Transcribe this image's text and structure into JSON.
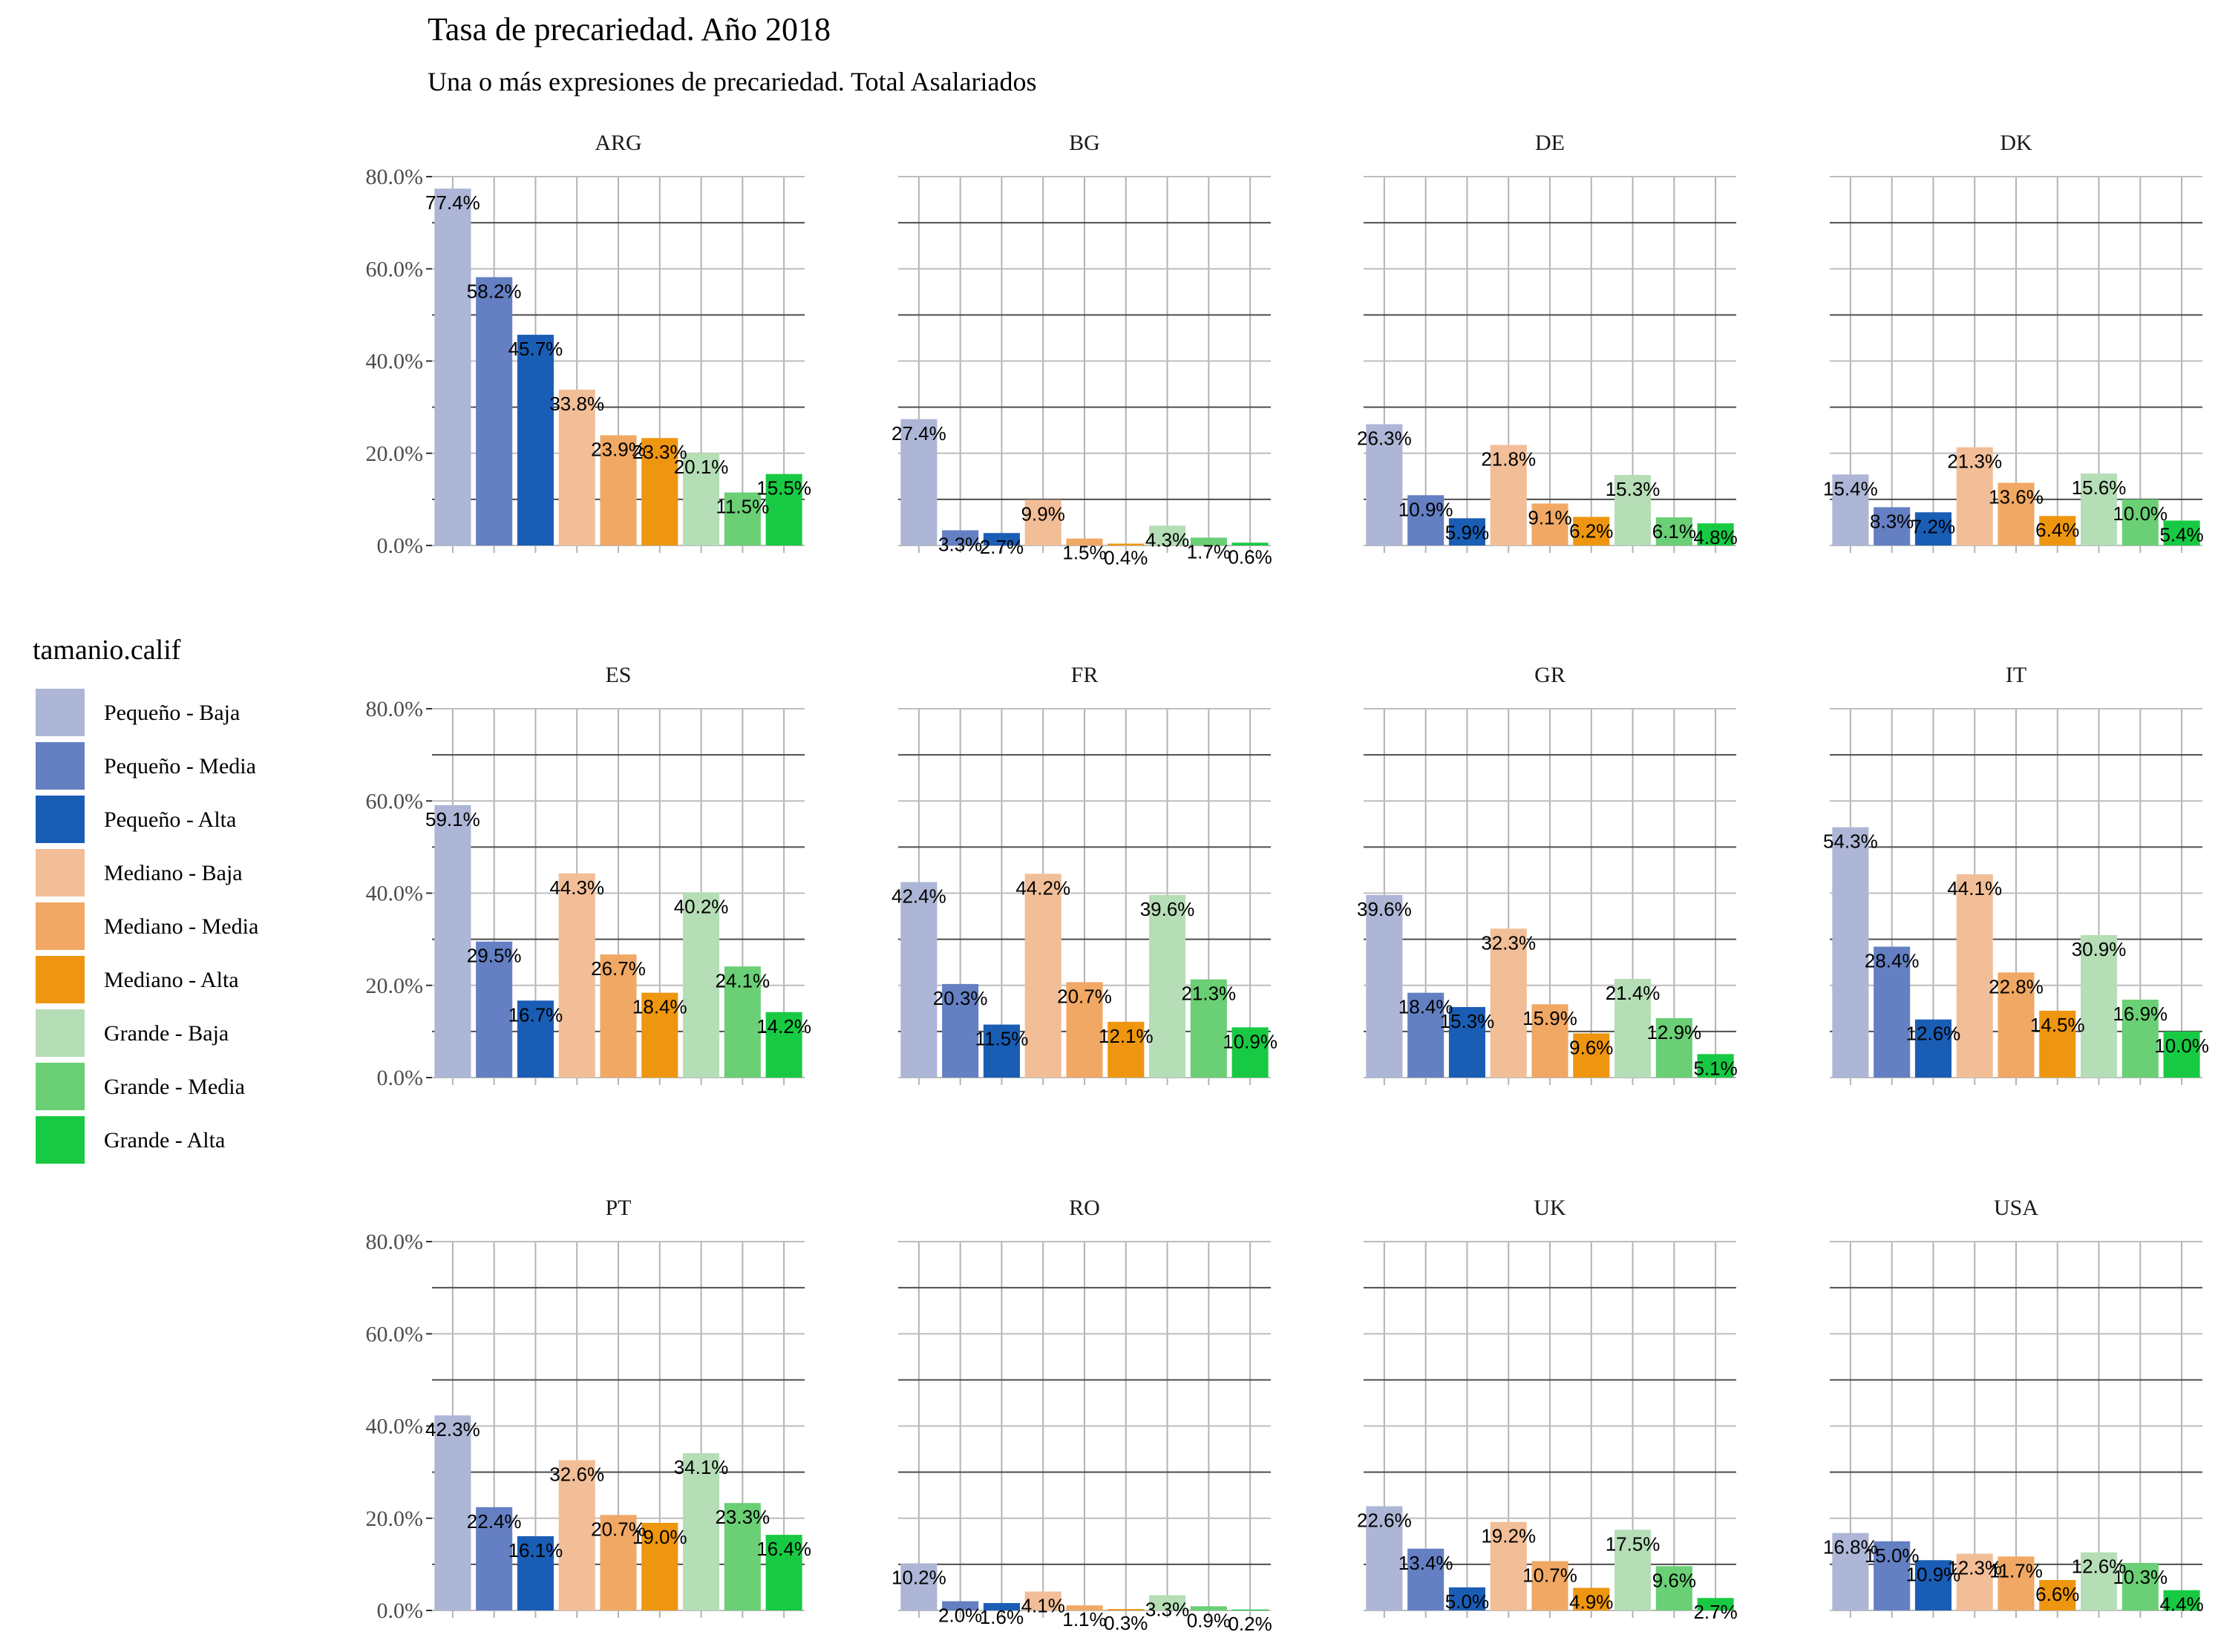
{
  "chart_data": {
    "type": "bar",
    "title": "Tasa de precariedad. Año 2018",
    "subtitle": "Una o más expresiones de precariedad. Total Asalariados",
    "ylim": [
      0,
      80
    ],
    "y_ticks": [
      "0.0%",
      "20.0%",
      "40.0%",
      "60.0%",
      "80.0%"
    ],
    "grid": true,
    "legend": {
      "title": "tamanio.calif",
      "placement": "left"
    },
    "categories": [
      "Pequeño - Baja",
      "Pequeño - Media",
      "Pequeño - Alta",
      "Mediano - Baja",
      "Mediano - Media",
      "Mediano - Alta",
      "Grande - Baja",
      "Grande - Media",
      "Grande - Alta"
    ],
    "colors": [
      "#ADB6D6",
      "#6480C2",
      "#1A5DB5",
      "#F2BE97",
      "#F0A864",
      "#EE9610",
      "#B5DDB6",
      "#6ACF75",
      "#18CA43"
    ],
    "panels": [
      {
        "name": "ARG",
        "values": [
          77.4,
          58.2,
          45.7,
          33.8,
          23.9,
          23.3,
          20.1,
          11.5,
          15.5
        ],
        "labels": [
          "77.4%",
          "58.2%",
          "45.7%",
          "33.8%",
          "23.9%",
          "23.3%",
          "20.1%",
          "11.5%",
          "15.5%"
        ]
      },
      {
        "name": "BG",
        "values": [
          27.4,
          3.3,
          2.7,
          9.9,
          1.5,
          0.4,
          4.3,
          1.7,
          0.6
        ],
        "labels": [
          "27.4%",
          "3.3%",
          "2.7%",
          "9.9%",
          "1.5%",
          "0.4%",
          "4.3%",
          "1.7%",
          "0.6%"
        ]
      },
      {
        "name": "DE",
        "values": [
          26.3,
          10.9,
          5.9,
          21.8,
          9.1,
          6.2,
          15.3,
          6.1,
          4.8
        ],
        "labels": [
          "26.3%",
          "10.9%",
          "5.9%",
          "21.8%",
          "9.1%",
          "6.2%",
          "15.3%",
          "6.1%",
          "4.8%"
        ]
      },
      {
        "name": "DK",
        "values": [
          15.4,
          8.3,
          7.2,
          21.3,
          13.6,
          6.4,
          15.6,
          10.0,
          5.4
        ],
        "labels": [
          "15.4%",
          "8.3%",
          "7.2%",
          "21.3%",
          "13.6%",
          "6.4%",
          "15.6%",
          "10.0%",
          "5.4%"
        ]
      },
      {
        "name": "ES",
        "values": [
          59.1,
          29.5,
          16.7,
          44.3,
          26.7,
          18.4,
          40.2,
          24.1,
          14.2
        ],
        "labels": [
          "59.1%",
          "29.5%",
          "16.7%",
          "44.3%",
          "26.7%",
          "18.4%",
          "40.2%",
          "24.1%",
          "14.2%"
        ]
      },
      {
        "name": "FR",
        "values": [
          42.4,
          20.3,
          11.5,
          44.2,
          20.7,
          12.1,
          39.6,
          21.3,
          10.9
        ],
        "labels": [
          "42.4%",
          "20.3%",
          "11.5%",
          "44.2%",
          "20.7%",
          "12.1%",
          "39.6%",
          "21.3%",
          "10.9%"
        ]
      },
      {
        "name": "GR",
        "values": [
          39.6,
          18.4,
          15.3,
          32.3,
          15.9,
          9.6,
          21.4,
          12.9,
          5.1
        ],
        "labels": [
          "39.6%",
          "18.4%",
          "15.3%",
          "32.3%",
          "15.9%",
          "9.6%",
          "21.4%",
          "12.9%",
          "5.1%"
        ]
      },
      {
        "name": "IT",
        "values": [
          54.3,
          28.4,
          12.6,
          44.1,
          22.8,
          14.5,
          30.9,
          16.9,
          10.0
        ],
        "labels": [
          "54.3%",
          "28.4%",
          "12.6%",
          "44.1%",
          "22.8%",
          "14.5%",
          "30.9%",
          "16.9%",
          "10.0%"
        ]
      },
      {
        "name": "PT",
        "values": [
          42.3,
          22.4,
          16.1,
          32.6,
          20.7,
          19.0,
          34.1,
          23.3,
          16.4
        ],
        "labels": [
          "42.3%",
          "22.4%",
          "16.1%",
          "32.6%",
          "20.7%",
          "19.0%",
          "34.1%",
          "23.3%",
          "16.4%"
        ]
      },
      {
        "name": "RO",
        "values": [
          10.2,
          2.0,
          1.6,
          4.1,
          1.1,
          0.3,
          3.3,
          0.9,
          0.2
        ],
        "labels": [
          "10.2%",
          "2.0%",
          "1.6%",
          "4.1%",
          "1.1%",
          "0.3%",
          "3.3%",
          "0.9%",
          "0.2%"
        ]
      },
      {
        "name": "UK",
        "values": [
          22.6,
          13.4,
          5.0,
          19.2,
          10.7,
          4.9,
          17.5,
          9.6,
          2.7
        ],
        "labels": [
          "22.6%",
          "13.4%",
          "5.0%",
          "19.2%",
          "10.7%",
          "4.9%",
          "17.5%",
          "9.6%",
          "2.7%"
        ]
      },
      {
        "name": "USA",
        "values": [
          16.8,
          15.0,
          10.9,
          12.3,
          11.7,
          6.6,
          12.6,
          10.3,
          4.4
        ],
        "labels": [
          "16.8%",
          "15.0%",
          "10.9%",
          "12.3%",
          "11.7%",
          "6.6%",
          "12.6%",
          "10.3%",
          "4.4%"
        ]
      }
    ]
  }
}
